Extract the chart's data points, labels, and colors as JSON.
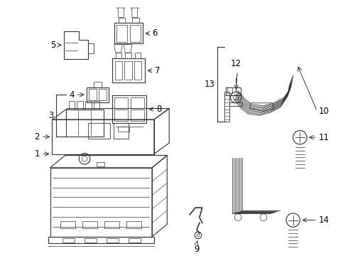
{
  "bg_color": "#ffffff",
  "line_color": "#333333",
  "text_color": "#000000",
  "fig_width": 4.9,
  "fig_height": 3.6,
  "dpi": 100
}
